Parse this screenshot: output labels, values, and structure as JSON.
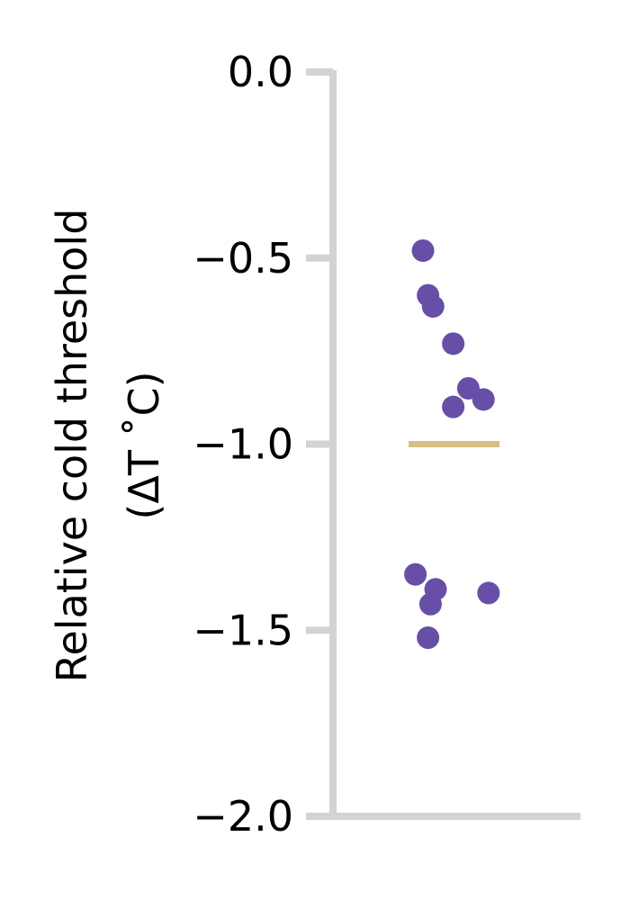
{
  "chart_data": {
    "type": "scatter",
    "title": "",
    "xlabel": "",
    "ylabel": {
      "line1": "Relative cold threshold",
      "line2": "(ΔT ˚C)"
    },
    "ylim": [
      -2.0,
      0.0
    ],
    "yticks": [
      {
        "value": 0.0,
        "label": "0.0"
      },
      {
        "value": -0.5,
        "label": "−0.5"
      },
      {
        "value": -1.0,
        "label": "−1.0"
      },
      {
        "value": -1.5,
        "label": "−1.5"
      },
      {
        "value": -2.0,
        "label": "−2.0"
      }
    ],
    "grid": false,
    "series": [
      {
        "values": [
          {
            "x": 0.0,
            "y": -0.48
          },
          {
            "x": 0.02,
            "y": -0.6
          },
          {
            "x": 0.04,
            "y": -0.63
          },
          {
            "x": 0.12,
            "y": -0.73
          },
          {
            "x": 0.18,
            "y": -0.85
          },
          {
            "x": 0.12,
            "y": -0.9
          },
          {
            "x": 0.24,
            "y": -0.88
          },
          {
            "x": -0.03,
            "y": -1.35
          },
          {
            "x": 0.05,
            "y": -1.39
          },
          {
            "x": 0.03,
            "y": -1.43
          },
          {
            "x": 0.26,
            "y": -1.4
          },
          {
            "x": 0.02,
            "y": -1.52
          }
        ]
      }
    ],
    "mean_line": {
      "y": -1.0
    },
    "colors": {
      "points": "#674ea7",
      "mean_line": "#d4bf86",
      "axis": "#d3d3d3"
    }
  }
}
